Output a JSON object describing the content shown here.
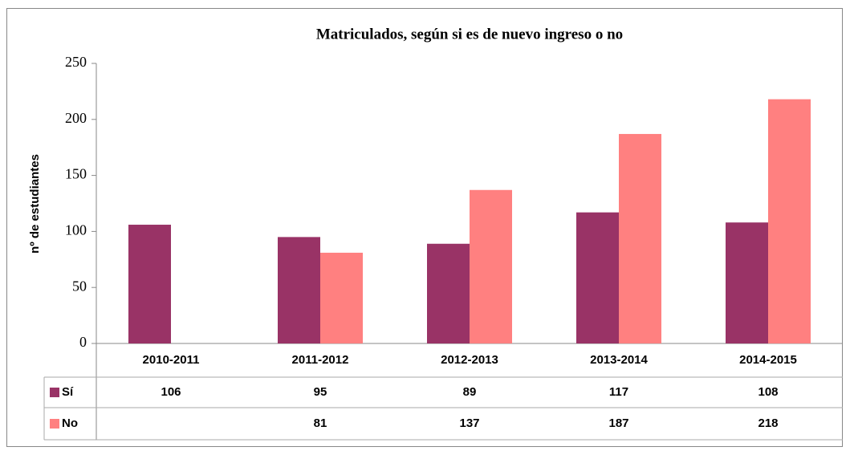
{
  "chart_data": {
    "type": "bar",
    "title": "Matriculados, según si es de nuevo ingreso o no",
    "y_label": "nº de estudiantes",
    "categories": [
      "2010-2011",
      "2011-2012",
      "2012-2013",
      "2013-2014",
      "2014-2015"
    ],
    "series": [
      {
        "name": "Sí",
        "color": "#993366",
        "values": [
          106,
          95,
          89,
          117,
          108
        ]
      },
      {
        "name": "No",
        "color": "#ff8080",
        "values": [
          null,
          81,
          137,
          187,
          218
        ]
      }
    ],
    "ylim": [
      0,
      250
    ],
    "yticks": [
      0,
      50,
      100,
      150,
      200,
      250
    ],
    "data_table": true
  }
}
